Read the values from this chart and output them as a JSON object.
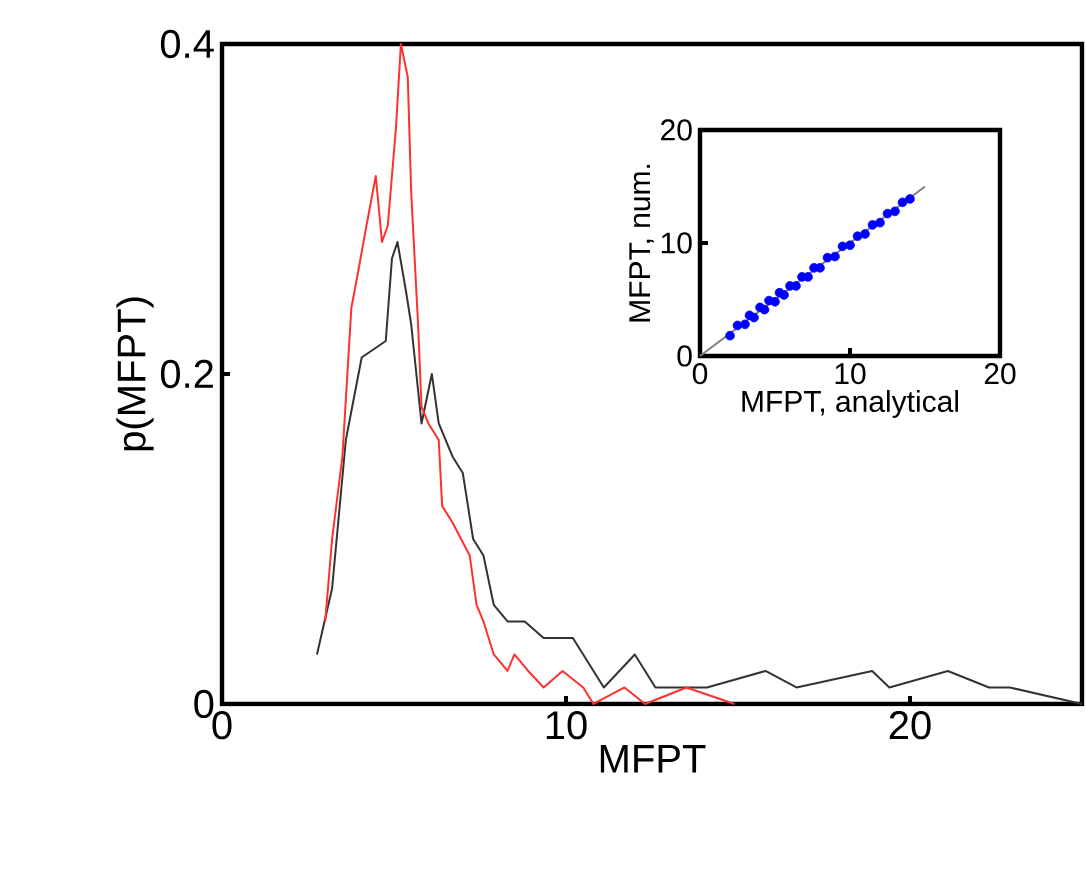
{
  "chart_data": [
    {
      "type": "line",
      "xlabel": "MFPT",
      "ylabel": "p(MFPT)",
      "xlim": [
        0,
        25
      ],
      "ylim": [
        0,
        0.4
      ],
      "xticks": [
        0,
        10,
        20
      ],
      "yticks": [
        0,
        0.2,
        0.4
      ],
      "grid": false,
      "series": [
        {
          "color": "#333333",
          "x": [
            2.76,
            3.2,
            3.6,
            4.06,
            4.76,
            4.94,
            5.1,
            5.35,
            5.5,
            5.8,
            6.1,
            6.3,
            6.7,
            7.0,
            7.3,
            7.6,
            7.9,
            8.3,
            8.8,
            9.35,
            9.9,
            10.2,
            10.8,
            11.1,
            12.0,
            12.6,
            13.5,
            14.1,
            15.8,
            16.7,
            18.9,
            19.4,
            21.1,
            22.3,
            22.9,
            25.0
          ],
          "values": [
            0.03,
            0.07,
            0.16,
            0.21,
            0.22,
            0.27,
            0.28,
            0.25,
            0.23,
            0.17,
            0.2,
            0.17,
            0.15,
            0.14,
            0.1,
            0.09,
            0.06,
            0.05,
            0.05,
            0.04,
            0.04,
            0.04,
            0.02,
            0.01,
            0.03,
            0.01,
            0.01,
            0.01,
            0.02,
            0.01,
            0.02,
            0.01,
            0.02,
            0.01,
            0.01,
            0.0
          ]
        },
        {
          "color": "#ff3030",
          "x": [
            3.0,
            3.2,
            3.5,
            3.76,
            3.94,
            4.2,
            4.47,
            4.65,
            4.82,
            5.06,
            5.2,
            5.4,
            5.5,
            5.7,
            5.8,
            6.0,
            6.3,
            6.4,
            6.7,
            7.2,
            7.4,
            7.6,
            7.9,
            8.3,
            8.5,
            8.9,
            9.35,
            9.9,
            10.5,
            10.8,
            11.7,
            12.3,
            13.5,
            14.9
          ],
          "values": [
            0.05,
            0.1,
            0.15,
            0.24,
            0.26,
            0.29,
            0.32,
            0.28,
            0.29,
            0.35,
            0.4,
            0.38,
            0.31,
            0.23,
            0.18,
            0.17,
            0.16,
            0.12,
            0.11,
            0.09,
            0.06,
            0.05,
            0.03,
            0.02,
            0.03,
            0.02,
            0.01,
            0.02,
            0.01,
            0.0,
            0.01,
            0.0,
            0.01,
            0.0
          ]
        }
      ]
    },
    {
      "type": "scatter",
      "xlabel": "MFPT, analytical",
      "ylabel": "MFPT, num.",
      "xlim": [
        0,
        20
      ],
      "ylim": [
        0,
        20
      ],
      "xticks": [
        0,
        10,
        20
      ],
      "yticks": [
        0,
        10,
        20
      ],
      "grid": false,
      "series": [
        {
          "type": "line",
          "color": "#808080",
          "x": [
            0,
            15
          ],
          "values": [
            0,
            15
          ]
        },
        {
          "color": "#0000ff",
          "marker": "circle",
          "x": [
            2,
            2.5,
            3,
            3.3,
            3.6,
            4,
            4.3,
            4.6,
            5,
            5.3,
            5.6,
            6,
            6.4,
            6.8,
            7.2,
            7.6,
            8,
            8.5,
            9,
            9.5,
            10,
            10.5,
            11,
            11.5,
            12,
            12.5,
            13,
            13.5,
            14
          ],
          "values": [
            1.8,
            2.7,
            2.8,
            3.6,
            3.4,
            4.3,
            4.1,
            4.9,
            4.8,
            5.6,
            5.4,
            6.2,
            6.2,
            7.0,
            7.0,
            7.8,
            7.8,
            8.7,
            8.8,
            9.7,
            9.8,
            10.6,
            10.8,
            11.6,
            11.8,
            12.6,
            12.8,
            13.6,
            13.9
          ]
        }
      ]
    }
  ]
}
